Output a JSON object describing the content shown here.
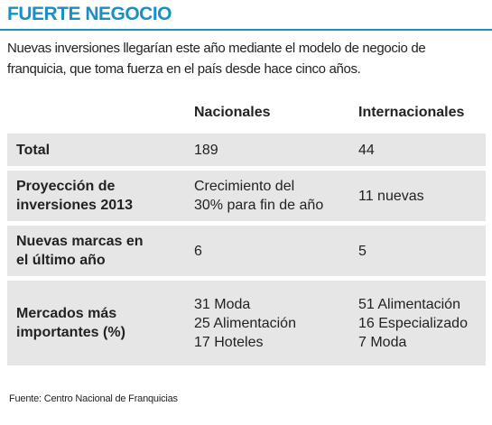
{
  "header": {
    "title": "FUERTE NEGOCIO",
    "subtitle": [
      "Nuevas inversiones llegarían este año mediante el modelo de negocio de",
      "franquicia, que toma fuerza en el país desde hace cinco años."
    ]
  },
  "table": {
    "columns": [
      "Nacionales",
      "Internacionales"
    ],
    "rows": [
      {
        "label": [
          "Total"
        ],
        "cells": [
          [
            "189"
          ],
          [
            "44"
          ]
        ]
      },
      {
        "label": [
          "Proyección de",
          "inversiones 2013"
        ],
        "cells": [
          [
            "Crecimiento del",
            "30% para fin de año"
          ],
          [
            "11 nuevas"
          ]
        ]
      },
      {
        "label": [
          "Nuevas marcas en",
          "el último año"
        ],
        "cells": [
          [
            "6"
          ],
          [
            "5"
          ]
        ]
      },
      {
        "label": [
          "Mercados más",
          "importantes (%)"
        ],
        "cells": [
          [
            "31 Moda",
            "25 Alimentación",
            "17 Hoteles"
          ],
          [
            "51 Alimentación",
            "16 Especializado",
            "7 Moda"
          ]
        ]
      }
    ]
  },
  "footer": {
    "source": "Fuente: Centro Nacional de Franquicias"
  }
}
